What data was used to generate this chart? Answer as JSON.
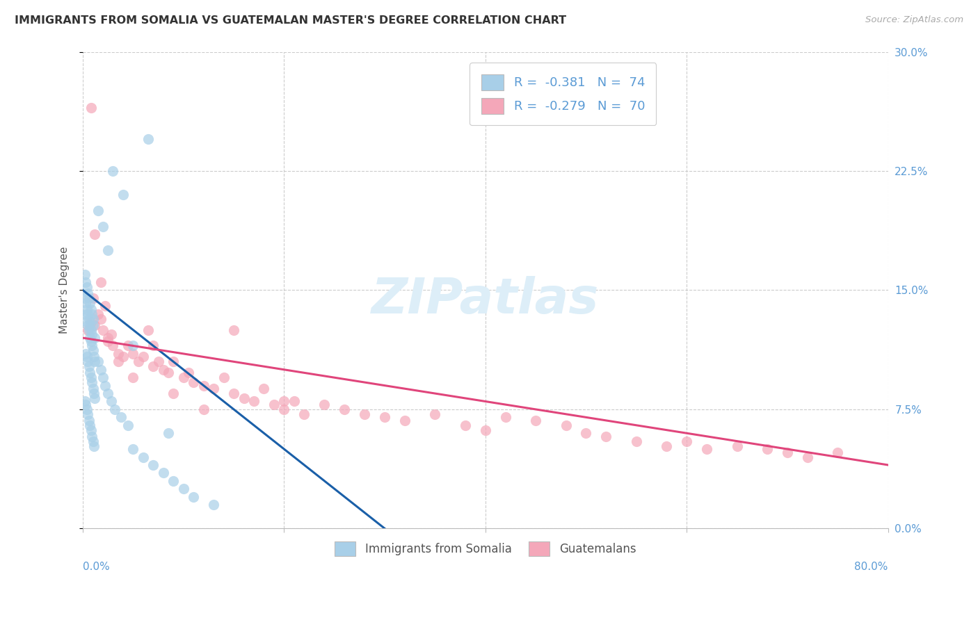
{
  "title": "IMMIGRANTS FROM SOMALIA VS GUATEMALAN MASTER'S DEGREE CORRELATION CHART",
  "source": "Source: ZipAtlas.com",
  "ylabel": "Master's Degree",
  "ytick_values": [
    0.0,
    7.5,
    15.0,
    22.5,
    30.0
  ],
  "xlim": [
    0.0,
    80.0
  ],
  "ylim": [
    0.0,
    30.0
  ],
  "color_blue": "#a8cfe8",
  "color_pink": "#f4a7b9",
  "trendline_blue_color": "#1a5fa8",
  "trendline_pink_color": "#e0457b",
  "somalia_x": [
    0.3,
    0.4,
    0.5,
    0.6,
    0.7,
    0.8,
    0.9,
    1.0,
    1.1,
    1.2,
    0.3,
    0.4,
    0.5,
    0.6,
    0.7,
    0.8,
    0.9,
    1.0,
    1.1,
    1.2,
    0.2,
    0.3,
    0.4,
    0.5,
    0.6,
    0.7,
    0.8,
    0.9,
    1.0,
    1.1,
    0.2,
    0.3,
    0.4,
    0.5,
    0.6,
    0.7,
    0.8,
    0.9,
    1.0,
    1.2,
    0.2,
    0.3,
    0.4,
    0.5,
    0.6,
    0.7,
    0.8,
    0.9,
    1.0,
    1.5,
    1.8,
    2.0,
    2.2,
    2.5,
    2.8,
    3.2,
    3.8,
    4.5,
    5.0,
    6.0,
    7.0,
    8.0,
    9.0,
    10.0,
    11.0,
    13.0,
    1.5,
    2.0,
    2.5,
    3.0,
    4.0,
    5.0,
    6.5,
    8.5
  ],
  "somalia_y": [
    13.5,
    13.0,
    12.8,
    12.5,
    12.0,
    11.8,
    11.5,
    11.2,
    10.8,
    10.5,
    11.0,
    10.8,
    10.5,
    10.2,
    9.8,
    9.5,
    9.2,
    8.8,
    8.5,
    8.2,
    8.0,
    7.8,
    7.5,
    7.2,
    6.8,
    6.5,
    6.2,
    5.8,
    5.5,
    5.2,
    14.5,
    14.2,
    13.8,
    13.5,
    13.2,
    12.8,
    12.5,
    12.2,
    12.8,
    12.0,
    16.0,
    15.5,
    15.2,
    14.8,
    14.5,
    14.2,
    13.8,
    13.5,
    13.2,
    10.5,
    10.0,
    9.5,
    9.0,
    8.5,
    8.0,
    7.5,
    7.0,
    6.5,
    5.0,
    4.5,
    4.0,
    3.5,
    3.0,
    2.5,
    2.0,
    1.5,
    20.0,
    19.0,
    17.5,
    22.5,
    21.0,
    11.5,
    24.5,
    6.0
  ],
  "guatemala_x": [
    0.5,
    0.8,
    1.0,
    1.2,
    1.5,
    1.8,
    2.0,
    2.2,
    2.5,
    2.8,
    3.0,
    3.5,
    4.0,
    4.5,
    5.0,
    5.5,
    6.0,
    6.5,
    7.0,
    7.5,
    8.0,
    8.5,
    9.0,
    10.0,
    10.5,
    11.0,
    12.0,
    13.0,
    14.0,
    15.0,
    16.0,
    17.0,
    18.0,
    19.0,
    20.0,
    21.0,
    22.0,
    24.0,
    26.0,
    28.0,
    30.0,
    32.0,
    35.0,
    38.0,
    40.0,
    42.0,
    45.0,
    48.0,
    50.0,
    52.0,
    55.0,
    58.0,
    60.0,
    62.0,
    65.0,
    68.0,
    70.0,
    72.0,
    75.0,
    0.8,
    1.2,
    1.8,
    2.5,
    3.5,
    5.0,
    7.0,
    9.0,
    12.0,
    15.0,
    20.0
  ],
  "guatemala_y": [
    12.5,
    13.0,
    14.5,
    12.8,
    13.5,
    13.2,
    12.5,
    14.0,
    11.8,
    12.2,
    11.5,
    11.0,
    10.8,
    11.5,
    11.0,
    10.5,
    10.8,
    12.5,
    10.2,
    10.5,
    10.0,
    9.8,
    10.5,
    9.5,
    9.8,
    9.2,
    9.0,
    8.8,
    9.5,
    8.5,
    8.2,
    8.0,
    8.8,
    7.8,
    7.5,
    8.0,
    7.2,
    7.8,
    7.5,
    7.2,
    7.0,
    6.8,
    7.2,
    6.5,
    6.2,
    7.0,
    6.8,
    6.5,
    6.0,
    5.8,
    5.5,
    5.2,
    5.5,
    5.0,
    5.2,
    5.0,
    4.8,
    4.5,
    4.8,
    26.5,
    18.5,
    15.5,
    12.0,
    10.5,
    9.5,
    11.5,
    8.5,
    7.5,
    12.5,
    8.0
  ]
}
